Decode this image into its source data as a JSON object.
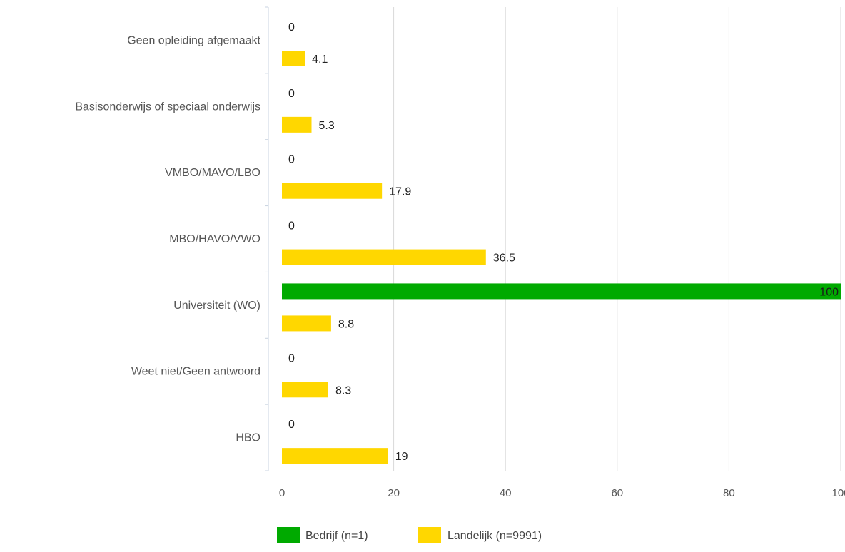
{
  "chart_data": {
    "type": "bar",
    "orientation": "horizontal",
    "categories": [
      "Geen opleiding afgemaakt",
      "Basisonderwijs of speciaal onderwijs",
      "VMBO/MAVO/LBO",
      "MBO/HAVO/VWO",
      "Universiteit (WO)",
      "Weet niet/Geen antwoord",
      "HBO"
    ],
    "series": [
      {
        "name": "Bedrijf (n=1)",
        "color": "#00aa00",
        "values": [
          0,
          0,
          0,
          0,
          100,
          0,
          0
        ]
      },
      {
        "name": "Landelijk (n=9991)",
        "color": "#ffd700",
        "values": [
          4.1,
          5.3,
          17.9,
          36.5,
          8.8,
          8.3,
          19
        ]
      }
    ],
    "value_labels": [
      [
        "0",
        "0",
        "0",
        "0",
        "100",
        "0",
        "0"
      ],
      [
        "4.1",
        "5.3",
        "17.9",
        "36.5",
        "8.8",
        "8.3",
        "19"
      ]
    ],
    "xticks": [
      0,
      20,
      40,
      60,
      80,
      100
    ],
    "xlim": [
      0,
      100
    ],
    "grid": true,
    "legend_position": "bottom-center",
    "title": "",
    "xlabel": "",
    "ylabel": ""
  }
}
